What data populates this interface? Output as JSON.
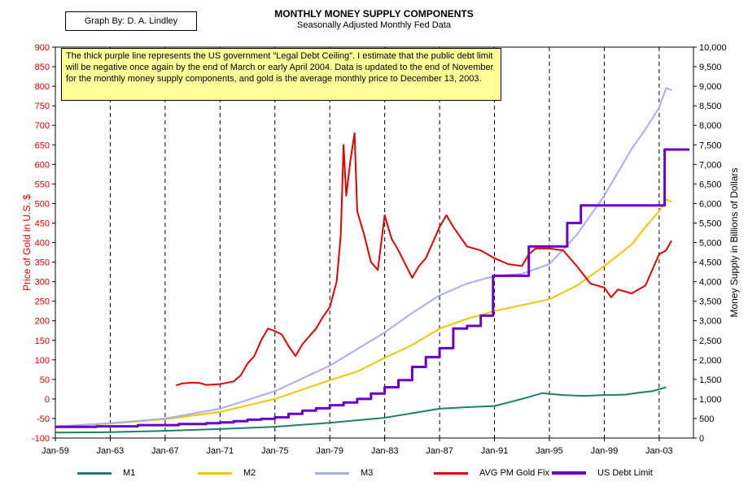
{
  "credit": "Graph By: D. A. Lindley",
  "title": "MONTHLY MONEY SUPPLY COMPONENTS",
  "subtitle": "Seasonally Adjusted Monthly Fed Data",
  "note": "The thick purple line represents the US government \"Legal Debt Ceiling\".  I estimate that the public debt limit will be negative once again by the end of March or early April 2004.  Data is updated to the end of November for the  monthly money supply components, and gold is the average monthly price to December 13, 2003.",
  "chart_data": {
    "type": "line",
    "ylabel_left": "Price of Gold in U.S. $",
    "ylabel_right": "Money Supply in Billions of Dollars",
    "xlim": [
      1959,
      2005.5
    ],
    "ylim_left": [
      -100,
      900
    ],
    "ylim_right": [
      0,
      10000
    ],
    "x_ticks": [
      "Jan-59",
      "Jan-63",
      "Jan-67",
      "Jan-71",
      "Jan-75",
      "Jan-79",
      "Jan-83",
      "Jan-87",
      "Jan-91",
      "Jan-95",
      "Jan-99",
      "Jan-03"
    ],
    "x_tick_values": [
      1959,
      1963,
      1967,
      1971,
      1975,
      1979,
      1983,
      1987,
      1991,
      1995,
      1999,
      2003
    ],
    "y_ticks_left": [
      -100,
      -50,
      0,
      50,
      100,
      150,
      200,
      250,
      300,
      350,
      400,
      450,
      500,
      550,
      600,
      650,
      700,
      750,
      800,
      850,
      900
    ],
    "y_ticks_right": [
      "0",
      "500",
      "1,000",
      "1,500",
      "2,000",
      "2,500",
      "3,000",
      "3,500",
      "4,000",
      "4,500",
      "5,000",
      "5,500",
      "6,000",
      "6,500",
      "7,000",
      "7,500",
      "8,000",
      "8,500",
      "9,000",
      "9,500",
      "10,000"
    ],
    "y_tick_values_right": [
      0,
      500,
      1000,
      1500,
      2000,
      2500,
      3000,
      3500,
      4000,
      4500,
      5000,
      5500,
      6000,
      6500,
      7000,
      7500,
      8000,
      8500,
      9000,
      9500,
      10000
    ],
    "grid": "vertical dashed at tick years",
    "legend_position": "bottom",
    "series": [
      {
        "name": "M1",
        "axis": "right",
        "color": "#1f7f6f",
        "x": [
          1959,
          1963,
          1967,
          1971,
          1975,
          1979,
          1983,
          1987,
          1989,
          1991,
          1993,
          1994.5,
          1996,
          1997.5,
          1999,
          2000.5,
          2001.5,
          2002.5,
          2003.5
        ],
        "y": [
          140,
          150,
          185,
          230,
          290,
          390,
          520,
          750,
          790,
          820,
          1000,
          1150,
          1100,
          1080,
          1100,
          1110,
          1160,
          1200,
          1300
        ]
      },
      {
        "name": "M2",
        "axis": "right",
        "color": "#f5c400",
        "x": [
          1959,
          1963,
          1967,
          1971,
          1975,
          1979,
          1981,
          1983,
          1985,
          1987,
          1989,
          1991,
          1993,
          1995,
          1997,
          1999,
          2001,
          2002,
          2003,
          2003.5,
          2003.9
        ],
        "y": [
          300,
          370,
          480,
          670,
          1000,
          1480,
          1700,
          2050,
          2380,
          2800,
          3050,
          3250,
          3400,
          3550,
          3900,
          4400,
          4950,
          5400,
          5800,
          6100,
          6050
        ]
      },
      {
        "name": "M3",
        "axis": "right",
        "color": "#a8aef0",
        "x": [
          1959,
          1963,
          1967,
          1971,
          1975,
          1979,
          1983,
          1985,
          1987,
          1989,
          1991,
          1993,
          1995,
          1997,
          1999,
          2001,
          2002,
          2003,
          2003.5,
          2003.9
        ],
        "y": [
          300,
          380,
          500,
          750,
          1200,
          1850,
          2700,
          3200,
          3650,
          3950,
          4150,
          4200,
          4450,
          5200,
          6200,
          7400,
          7900,
          8450,
          8950,
          8900
        ]
      },
      {
        "name": "AVG PM Gold Fix",
        "axis": "left",
        "color": "#e00000",
        "x": [
          1967.8,
          1968.3,
          1969,
          1969.5,
          1970,
          1971,
          1972,
          1972.5,
          1973,
          1973.5,
          1974,
          1974.5,
          1974.9,
          1975.5,
          1976,
          1976.5,
          1977,
          1978,
          1978.5,
          1979,
          1979.5,
          1979.8,
          1980,
          1980.2,
          1980.5,
          1980.8,
          1981,
          1981.5,
          1982,
          1982.5,
          1983,
          1983.5,
          1984,
          1985,
          1985.5,
          1986,
          1987,
          1987.5,
          1988,
          1989,
          1990,
          1991,
          1992,
          1993,
          1993.5,
          1994,
          1995,
          1996,
          1997,
          1998,
          1999,
          1999.5,
          2000,
          2001,
          2002,
          2003,
          2003.5,
          2003.9
        ],
        "y": [
          35,
          40,
          42,
          41,
          36,
          38,
          45,
          60,
          90,
          110,
          150,
          180,
          175,
          165,
          135,
          110,
          140,
          180,
          210,
          235,
          300,
          420,
          650,
          520,
          610,
          680,
          480,
          420,
          350,
          330,
          470,
          410,
          380,
          310,
          340,
          360,
          440,
          470,
          440,
          390,
          380,
          360,
          345,
          340,
          370,
          385,
          385,
          380,
          340,
          295,
          285,
          260,
          280,
          270,
          290,
          370,
          380,
          405
        ]
      },
      {
        "name": "US Debt Limit",
        "axis": "right",
        "color": "#6a00c8",
        "step": true,
        "x": [
          1959,
          1962,
          1965,
          1968,
          1970,
          1971,
          1972,
          1973,
          1974,
          1975,
          1976,
          1977,
          1978,
          1979,
          1980,
          1981,
          1982,
          1983,
          1984,
          1985,
          1986,
          1987,
          1988,
          1989,
          1990,
          1990.9,
          1993,
          1993.5,
          1995,
          1996.3,
          1997.3,
          2002.3,
          2003.4,
          2005.2
        ],
        "y": [
          285,
          300,
          330,
          360,
          380,
          400,
          430,
          470,
          490,
          530,
          620,
          700,
          760,
          840,
          910,
          1000,
          1140,
          1300,
          1480,
          1820,
          2070,
          2300,
          2800,
          2870,
          3130,
          4150,
          4150,
          4900,
          4900,
          5500,
          5950,
          5950,
          7380,
          7380
        ]
      }
    ]
  }
}
